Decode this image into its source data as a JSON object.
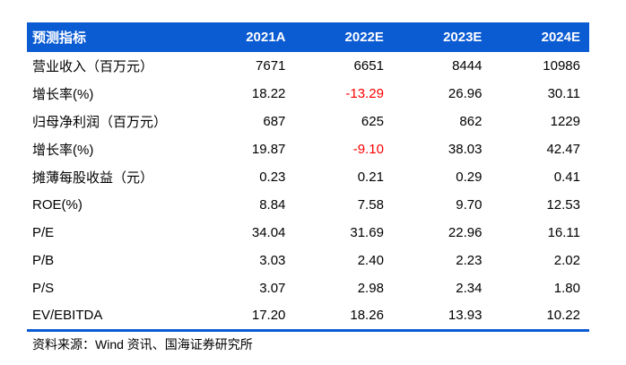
{
  "colors": {
    "accent_blue": "#0B5BD3",
    "negative_red": "#FF0000",
    "header_text": "#FFFFFF",
    "body_text": "#000000"
  },
  "table": {
    "header": [
      "预测指标",
      "2021A",
      "2022E",
      "2023E",
      "2024E"
    ],
    "rows": [
      {
        "label": "营业收入（百万元）",
        "values": [
          "7671",
          "6651",
          "8444",
          "10986"
        ]
      },
      {
        "label": "增长率(%)",
        "values": [
          "18.22",
          "-13.29",
          "26.96",
          "30.11"
        ]
      },
      {
        "label": "归母净利润（百万元）",
        "values": [
          "687",
          "625",
          "862",
          "1229"
        ]
      },
      {
        "label": "增长率(%)",
        "values": [
          "19.87",
          "-9.10",
          "38.03",
          "42.47"
        ]
      },
      {
        "label": "摊薄每股收益（元）",
        "values": [
          "0.23",
          "0.21",
          "0.29",
          "0.41"
        ]
      },
      {
        "label": "ROE(%)",
        "values": [
          "8.84",
          "7.58",
          "9.70",
          "12.53"
        ]
      },
      {
        "label": "P/E",
        "values": [
          "34.04",
          "31.69",
          "22.96",
          "16.11"
        ]
      },
      {
        "label": "P/B",
        "values": [
          "3.03",
          "2.40",
          "2.23",
          "2.02"
        ]
      },
      {
        "label": "P/S",
        "values": [
          "3.07",
          "2.98",
          "2.34",
          "1.80"
        ]
      },
      {
        "label": "EV/EBITDA",
        "values": [
          "17.20",
          "18.26",
          "13.93",
          "10.22"
        ]
      }
    ]
  },
  "footer": {
    "source": "资料来源：Wind 资讯、国海证券研究所"
  }
}
